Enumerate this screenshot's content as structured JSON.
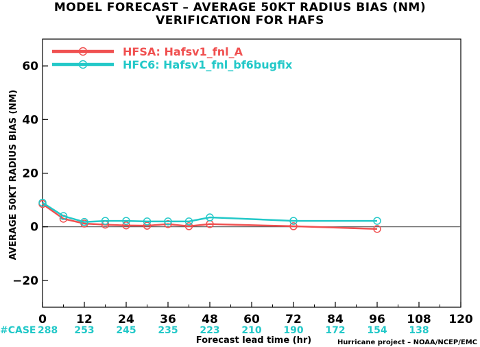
{
  "chart_data": {
    "type": "line",
    "title": "MODEL FORECAST – AVERAGE 50KT RADIUS BIAS (NM)",
    "subtitle": "VERIFICATION FOR HAFS",
    "xlabel": "Forecast lead time (hr)",
    "ylabel": "AVERAGE 50KT RADIUS BIAS (NM)",
    "xlim": [
      0,
      120
    ],
    "ylim": [
      -30,
      70
    ],
    "xticks": [
      0,
      12,
      24,
      36,
      48,
      60,
      72,
      84,
      96,
      108,
      120
    ],
    "yticks": [
      -20,
      0,
      20,
      40,
      60
    ],
    "zero_line": true,
    "legend_position": "top-left",
    "series": [
      {
        "name": "HFSA: Hafsv1_fnl_A",
        "color": "#f05050",
        "x": [
          0,
          6,
          12,
          18,
          24,
          30,
          36,
          42,
          48,
          72,
          96
        ],
        "y": [
          8.5,
          3.0,
          1.2,
          0.8,
          0.5,
          0.4,
          1.0,
          0.2,
          1.0,
          0.2,
          -0.8
        ]
      },
      {
        "name": "HFC6: Hafsv1_fnl_bf6bugfix",
        "color": "#22c8c8",
        "x": [
          0,
          6,
          12,
          18,
          24,
          30,
          36,
          42,
          48,
          72,
          96
        ],
        "y": [
          9.0,
          4.0,
          1.8,
          2.2,
          2.2,
          2.0,
          2.0,
          2.0,
          3.5,
          2.2,
          2.2
        ]
      }
    ],
    "case_label": "#CASE",
    "case_counts": [
      {
        "x": 0,
        "n": "288"
      },
      {
        "x": 12,
        "n": "253"
      },
      {
        "x": 24,
        "n": "245"
      },
      {
        "x": 36,
        "n": "235"
      },
      {
        "x": 48,
        "n": "223"
      },
      {
        "x": 60,
        "n": "210"
      },
      {
        "x": 72,
        "n": "190"
      },
      {
        "x": 84,
        "n": "172"
      },
      {
        "x": 96,
        "n": "154"
      },
      {
        "x": 108,
        "n": "138"
      }
    ],
    "credit": "Hurricane project – NOAA/NCEP/EMC"
  }
}
